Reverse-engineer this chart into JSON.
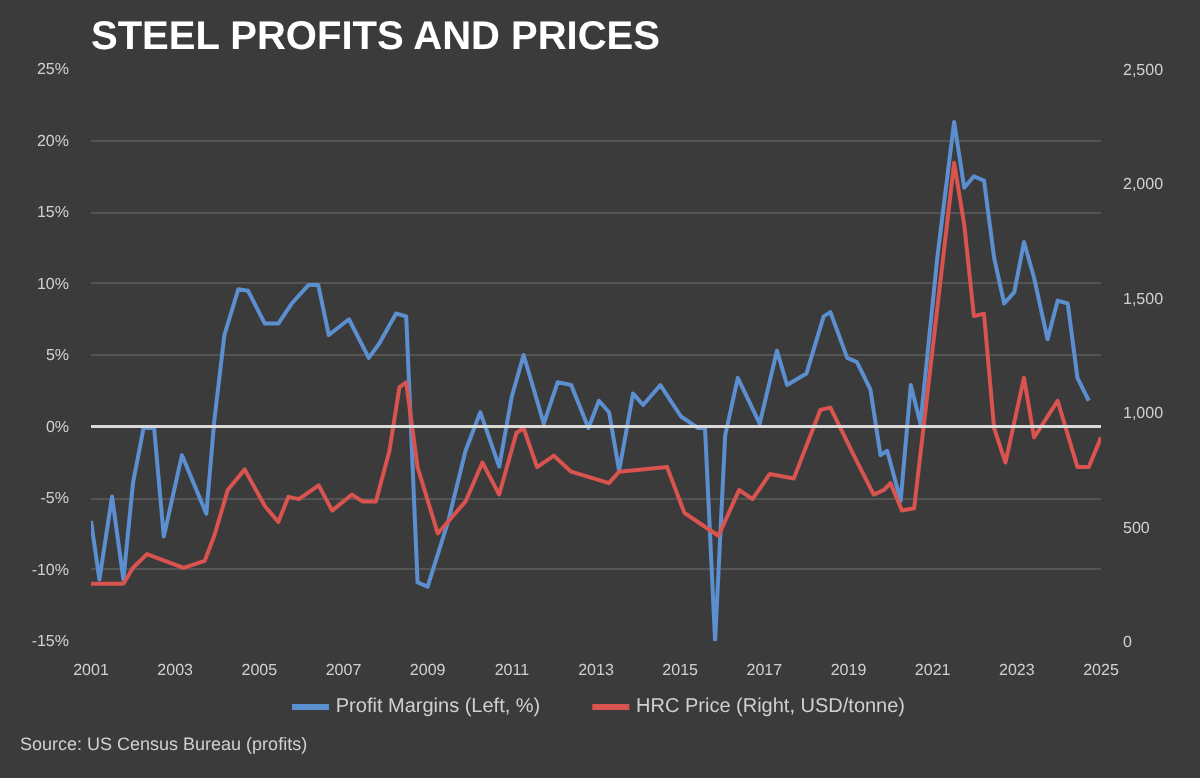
{
  "chart_data": {
    "type": "line",
    "title": "STEEL PROFITS AND PRICES",
    "annotations": [
      "Source: US Census Bureau (profits)"
    ],
    "xlim": [
      2001,
      2025
    ],
    "xticks": [
      2001,
      2003,
      2005,
      2007,
      2009,
      2011,
      2013,
      2015,
      2017,
      2019,
      2021,
      2023,
      2025
    ],
    "ylim": [
      -15,
      25
    ],
    "yticks": [
      {
        "value": -15,
        "label": "-15%"
      },
      {
        "value": -10,
        "label": "-10%"
      },
      {
        "value": -5,
        "label": "-5%"
      },
      {
        "value": 0,
        "label": "0%"
      },
      {
        "value": 5,
        "label": "5%"
      },
      {
        "value": 10,
        "label": "10%"
      },
      {
        "value": 15,
        "label": "15%"
      },
      {
        "value": 20,
        "label": "20%"
      },
      {
        "value": 25,
        "label": "25%"
      }
    ],
    "y2lim": [
      0,
      2500
    ],
    "y2ticks": [
      0,
      {
        "value": 500,
        "label": "500"
      },
      {
        "value": 1000,
        "label": "1,000"
      },
      {
        "value": 1500,
        "label": "1,500"
      },
      {
        "value": 2000,
        "label": "2,000"
      },
      {
        "value": 2500,
        "label": "2,500"
      }
    ],
    "grid": "y",
    "legend": "bottom",
    "line_style": "solid",
    "ref_lines": [
      {
        "axis": "y",
        "value": 0,
        "color": "#d9d9d9"
      }
    ],
    "series": [
      {
        "name": "Profit Margins (Left, %)",
        "color": "#5b8fd0",
        "x": [
          2001.0,
          2001.2,
          2001.5,
          2001.77,
          2002.0,
          2002.25,
          2002.5,
          2002.73,
          2003.16,
          2003.74,
          2003.93,
          2004.17,
          2004.5,
          2004.73,
          2005.13,
          2005.45,
          2005.77,
          2006.17,
          2006.4,
          2006.65,
          2007.13,
          2007.6,
          2007.85,
          2008.25,
          2008.49,
          2008.76,
          2009.0,
          2009.49,
          2009.9,
          2010.25,
          2010.7,
          2011.0,
          2011.28,
          2011.76,
          2012.09,
          2012.41,
          2012.82,
          2013.07,
          2013.31,
          2013.55,
          2013.88,
          2014.12,
          2014.53,
          2015.02,
          2015.42,
          2015.59,
          2015.83,
          2016.07,
          2016.37,
          2016.89,
          2017.3,
          2017.54,
          2018.0,
          2018.41,
          2018.57,
          2018.97,
          2019.2,
          2019.52,
          2019.76,
          2019.92,
          2020.24,
          2020.48,
          2020.71,
          2021.11,
          2021.51,
          2021.75,
          2021.98,
          2022.22,
          2022.46,
          2022.7,
          2022.94,
          2023.17,
          2023.41,
          2023.73,
          2023.97,
          2024.21,
          2024.44,
          2024.71
        ],
        "values": [
          -6.6,
          -10.7,
          -4.9,
          -10.7,
          -3.9,
          -0.1,
          -0.1,
          -7.7,
          -2.0,
          -6.1,
          0.4,
          6.4,
          9.6,
          9.5,
          7.2,
          7.2,
          8.6,
          9.9,
          9.9,
          6.4,
          7.5,
          4.8,
          5.8,
          7.9,
          7.7,
          -10.9,
          -11.2,
          -6.6,
          -1.7,
          1.0,
          -2.8,
          2.1,
          5.0,
          0.2,
          3.1,
          2.9,
          -0.1,
          1.8,
          1.0,
          -3.1,
          2.3,
          1.5,
          2.9,
          0.7,
          -0.1,
          -0.1,
          -15.0,
          -0.6,
          3.4,
          0.2,
          5.3,
          2.9,
          3.7,
          7.7,
          8.0,
          4.8,
          4.5,
          2.6,
          -2.0,
          -1.7,
          -5.2,
          2.9,
          0.2,
          11.8,
          21.3,
          16.7,
          17.5,
          17.2,
          11.8,
          8.6,
          9.4,
          12.9,
          10.4,
          6.1,
          8.8,
          8.6,
          3.4,
          1.8
        ]
      },
      {
        "name": "HRC Price (Right, USD/tonne)",
        "color": "#d9534f",
        "axis": "y2",
        "x": [
          2001.0,
          2001.77,
          2002.0,
          2002.33,
          2003.2,
          2003.7,
          2003.93,
          2004.25,
          2004.65,
          2005.13,
          2005.45,
          2005.69,
          2005.94,
          2006.41,
          2006.73,
          2007.2,
          2007.45,
          2007.77,
          2008.09,
          2008.33,
          2008.49,
          2008.76,
          2009.24,
          2009.9,
          2010.3,
          2010.7,
          2011.11,
          2011.28,
          2011.6,
          2012.0,
          2012.41,
          2013.31,
          2013.55,
          2014.69,
          2015.1,
          2015.42,
          2015.91,
          2016.4,
          2016.72,
          2017.13,
          2017.7,
          2018.33,
          2018.57,
          2019.13,
          2019.6,
          2019.84,
          2020.0,
          2020.27,
          2020.56,
          2021.51,
          2021.75,
          2021.98,
          2022.22,
          2022.46,
          2022.73,
          2023.17,
          2023.41,
          2023.97,
          2024.44,
          2024.71,
          2025.0
        ],
        "values": [
          250,
          250,
          320,
          380,
          320,
          350,
          460,
          660,
          750,
          590,
          520,
          630,
          620,
          680,
          570,
          640,
          610,
          610,
          830,
          1110,
          1130,
          760,
          470,
          610,
          780,
          640,
          910,
          930,
          760,
          810,
          740,
          690,
          740,
          760,
          560,
          520,
          460,
          660,
          620,
          730,
          710,
          1010,
          1020,
          810,
          640,
          660,
          690,
          570,
          580,
          2090,
          1820,
          1420,
          1430,
          930,
          780,
          1150,
          890,
          1050,
          760,
          760,
          890
        ]
      }
    ]
  }
}
